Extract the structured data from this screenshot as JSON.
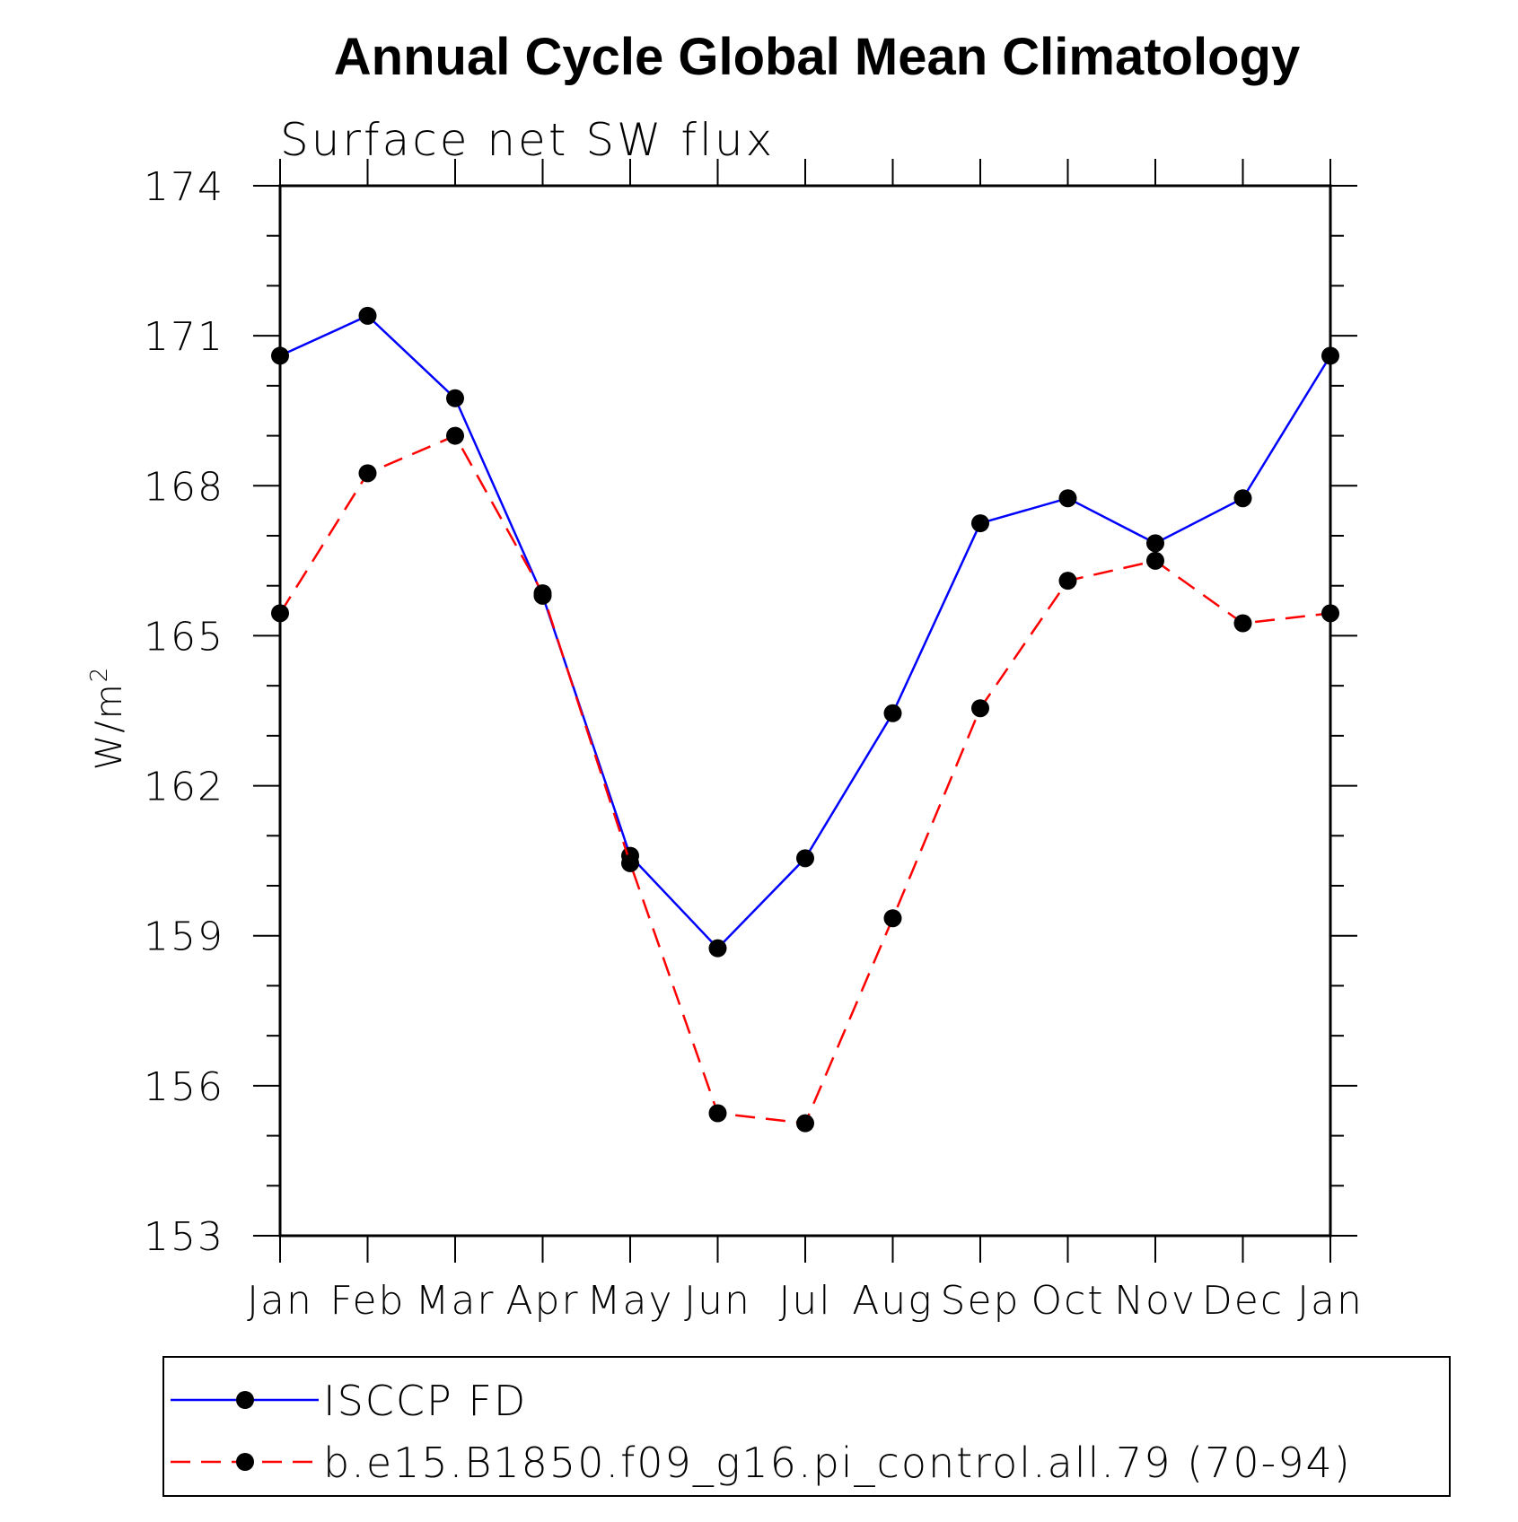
{
  "chart_data": {
    "type": "line",
    "title": "Annual Cycle Global Mean Climatology",
    "subtitle": "Surface net SW flux",
    "ylabel": "W/m",
    "ylabel_superscript": "2",
    "xlabel": "",
    "categories": [
      "Jan",
      "Feb",
      "Mar",
      "Apr",
      "May",
      "Jun",
      "Jul",
      "Aug",
      "Sep",
      "Oct",
      "Nov",
      "Dec",
      "Jan"
    ],
    "ylim": [
      153,
      174
    ],
    "yticks": [
      153,
      156,
      159,
      162,
      165,
      168,
      171,
      174
    ],
    "grid": false,
    "legend_position": "bottom",
    "series": [
      {
        "name": "ISCCP FD",
        "color": "#0000ff",
        "line_style": "solid",
        "marker": "filled-circle",
        "values": [
          170.6,
          171.4,
          169.75,
          165.8,
          160.6,
          158.75,
          160.55,
          163.45,
          167.25,
          167.75,
          166.85,
          167.75,
          170.6
        ]
      },
      {
        "name": "b.e15.B1850.f09_g16.pi_control.all.79 (70-94)",
        "color": "#ff0000",
        "line_style": "dashed",
        "marker": "filled-circle",
        "values": [
          165.45,
          168.25,
          169.0,
          165.85,
          160.45,
          155.45,
          155.25,
          159.35,
          163.55,
          166.1,
          166.5,
          165.25,
          165.45
        ]
      }
    ]
  }
}
